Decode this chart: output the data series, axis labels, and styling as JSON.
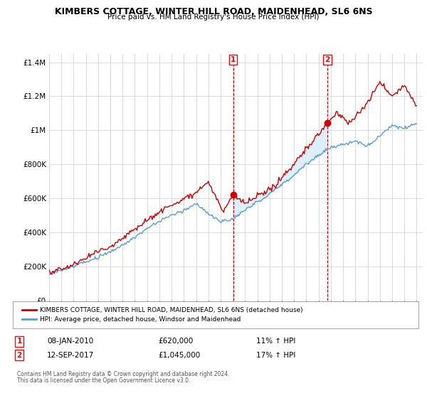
{
  "title": "KIMBERS COTTAGE, WINTER HILL ROAD, MAIDENHEAD, SL6 6NS",
  "subtitle": "Price paid vs. HM Land Registry's House Price Index (HPI)",
  "legend_line1": "KIMBERS COTTAGE, WINTER HILL ROAD, MAIDENHEAD, SL6 6NS (detached house)",
  "legend_line2": "HPI: Average price, detached house, Windsor and Maidenhead",
  "note1": "Contains HM Land Registry data © Crown copyright and database right 2024.",
  "note2": "This data is licensed under the Open Government Licence v3.0.",
  "purchase1_date": "08-JAN-2010",
  "purchase1_price": 620000,
  "purchase1_hpi": "11% ↑ HPI",
  "purchase1_x": 2010.03,
  "purchase2_date": "12-SEP-2017",
  "purchase2_price": 1045000,
  "purchase2_hpi": "17% ↑ HPI",
  "purchase2_x": 2017.71,
  "red_color": "#cc0000",
  "blue_color": "#5b9bd5",
  "fill_color": "#ddeeff",
  "bg_color": "#ffffff",
  "ylim": [
    0,
    1450000
  ],
  "xlim_start": 1995,
  "xlim_end": 2025.5
}
